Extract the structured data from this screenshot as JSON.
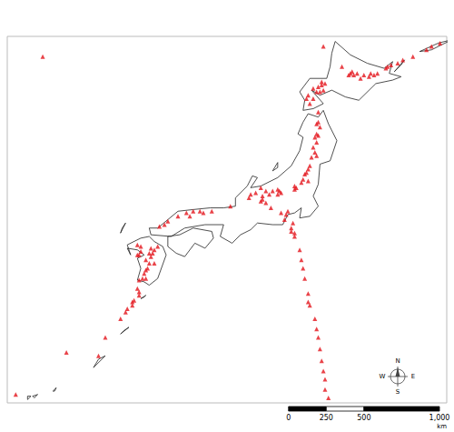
{
  "chart_data": {
    "type": "scatter",
    "marker": "triangle",
    "color": "#e3141b",
    "grid": false,
    "tick_labels": false,
    "xlim": [
      122.5,
      148.5
    ],
    "ylim": [
      24,
      45.8
    ],
    "x": [
      145.0,
      145.2,
      144.9,
      145.6,
      145.9,
      146.5,
      147.3,
      147.6,
      148.1,
      148.6,
      144.0,
      144.2,
      144.4,
      143.9,
      143.6,
      143.2,
      142.9,
      142.8,
      142.7,
      143.0,
      143.4,
      141.3,
      141.1,
      140.9,
      141.2,
      140.8,
      140.6,
      141.0,
      140.3,
      140.6,
      140.2,
      140.4,
      141.1,
      142.3,
      141.2,
      140.9,
      140.9,
      140.8,
      141.0,
      140.8,
      140.7,
      140.9,
      140.8,
      140.6,
      140.7,
      140.8,
      140.5,
      140.4,
      140.3,
      140.2,
      140.1,
      140.0,
      139.9,
      140.3,
      139.5,
      139.6,
      139.5,
      138.5,
      138.6,
      138.5,
      138.7,
      138.2,
      137.6,
      137.6,
      137.5,
      137.8,
      138.0,
      137.8,
      137.5,
      137.2,
      136.8,
      136.9,
      138.1,
      138.7,
      139.0,
      138.9,
      139.1,
      139.4,
      139.3,
      139.3,
      139.5,
      139.5,
      139.8,
      139.9,
      140.0,
      140.1,
      140.3,
      140.3,
      140.4,
      140.7,
      140.8,
      140.9,
      141.0,
      141.1,
      141.2,
      141.3,
      141.3,
      141.5,
      133.9,
      133.5,
      133.1,
      132.6,
      132.0,
      131.8,
      131.5,
      134.1,
      134.6,
      133.3,
      135.7,
      130.2,
      130.4,
      131.0,
      131.2,
      131.4,
      131.1,
      130.9,
      131.0,
      130.7,
      130.3,
      130.2,
      130.9,
      130.8,
      130.7,
      130.6,
      130.5,
      130.3,
      130.7,
      131.2,
      130.4,
      130.2,
      130.3,
      129.9,
      129.6,
      129.2,
      129.5,
      129.9,
      130.0,
      130.3,
      128.3,
      127.9,
      126.0,
      123.0,
      124.6
    ],
    "values": [
      44.0,
      44.1,
      43.9,
      44.2,
      44.4,
      44.6,
      45.0,
      45.2,
      45.4,
      45.6,
      43.6,
      43.5,
      43.6,
      43.4,
      43.5,
      43.6,
      43.7,
      43.6,
      43.5,
      43.5,
      43.3,
      43.0,
      42.9,
      42.8,
      42.6,
      42.5,
      42.7,
      42.5,
      42.3,
      42.1,
      42.1,
      41.8,
      43.1,
      44.0,
      45.2,
      41.3,
      40.7,
      40.6,
      40.4,
      40.0,
      39.8,
      39.9,
      39.5,
      39.2,
      38.9,
      38.7,
      38.6,
      38.1,
      37.9,
      37.7,
      37.6,
      37.3,
      37.1,
      37.2,
      36.9,
      36.8,
      36.7,
      36.7,
      36.6,
      36.4,
      36.5,
      36.6,
      36.3,
      36.1,
      36.0,
      35.9,
      36.4,
      36.6,
      36.8,
      36.5,
      36.2,
      36.4,
      35.6,
      35.3,
      35.2,
      34.9,
      35.4,
      34.7,
      34.4,
      34.2,
      34.1,
      33.9,
      33.1,
      32.5,
      32.0,
      31.4,
      30.5,
      30.0,
      29.8,
      29.0,
      28.4,
      27.9,
      27.2,
      26.5,
      25.9,
      25.4,
      24.8,
      24.3,
      35.4,
      35.4,
      35.3,
      35.1,
      34.8,
      34.6,
      34.5,
      35.3,
      35.4,
      35.1,
      35.7,
      33.4,
      33.3,
      33.2,
      33.1,
      33.3,
      32.9,
      32.9,
      32.7,
      32.5,
      32.8,
      32.8,
      32.3,
      32.0,
      31.9,
      31.7,
      31.4,
      31.3,
      31.4,
      32.3,
      33.0,
      30.8,
      30.4,
      30.0,
      29.6,
      29.0,
      29.4,
      29.8,
      30.1,
      30.6,
      27.9,
      26.8,
      27.0,
      24.5,
      44.6
    ],
    "coastlines": [
      [
        [
          141.9,
          45.5
        ],
        [
          142.8,
          44.7
        ],
        [
          143.8,
          44.2
        ],
        [
          144.8,
          43.9
        ],
        [
          145.3,
          44.3
        ],
        [
          145.1,
          43.6
        ],
        [
          145.8,
          43.4
        ],
        [
          145.3,
          43.2
        ],
        [
          144.3,
          42.99
        ],
        [
          143.3,
          42.0
        ],
        [
          142.5,
          42.2
        ],
        [
          141.7,
          42.6
        ],
        [
          141.0,
          42.3
        ],
        [
          140.5,
          42.6
        ],
        [
          141.2,
          41.8
        ],
        [
          140.6,
          41.5
        ],
        [
          140.0,
          41.4
        ],
        [
          140.1,
          42.0
        ],
        [
          139.8,
          42.5
        ],
        [
          140.4,
          43.3
        ],
        [
          141.4,
          43.3
        ],
        [
          141.6,
          44.0
        ],
        [
          141.7,
          44.8
        ],
        [
          141.9,
          45.5
        ]
      ],
      [
        [
          140.3,
          41.2
        ],
        [
          140.9,
          41.0
        ],
        [
          141.2,
          41.4
        ],
        [
          141.5,
          40.6
        ],
        [
          142.0,
          39.6
        ],
        [
          141.6,
          38.4
        ],
        [
          141.0,
          38.2
        ],
        [
          140.9,
          37.0
        ],
        [
          140.6,
          36.3
        ],
        [
          140.9,
          35.7
        ],
        [
          140.4,
          35.1
        ],
        [
          139.8,
          35.0
        ],
        [
          139.9,
          35.6
        ],
        [
          139.5,
          35.3
        ],
        [
          139.1,
          35.2
        ],
        [
          138.8,
          34.6
        ],
        [
          138.2,
          34.6
        ],
        [
          137.3,
          34.7
        ],
        [
          136.9,
          34.3
        ],
        [
          136.3,
          34.0
        ],
        [
          135.8,
          33.5
        ],
        [
          135.1,
          33.9
        ],
        [
          135.3,
          34.6
        ],
        [
          134.2,
          34.6
        ],
        [
          133.0,
          34.4
        ],
        [
          132.2,
          33.9
        ],
        [
          131.0,
          34.0
        ],
        [
          130.9,
          34.4
        ],
        [
          131.4,
          34.4
        ],
        [
          132.6,
          35.4
        ],
        [
          133.5,
          35.5
        ],
        [
          134.5,
          35.6
        ],
        [
          135.3,
          35.6
        ],
        [
          136.0,
          35.7
        ],
        [
          136.0,
          36.2
        ],
        [
          136.7,
          36.9
        ],
        [
          137.0,
          37.5
        ],
        [
          137.3,
          37.4
        ],
        [
          136.9,
          36.8
        ],
        [
          137.5,
          36.9
        ],
        [
          138.5,
          37.4
        ],
        [
          139.3,
          38.1
        ],
        [
          139.8,
          39.0
        ],
        [
          140.0,
          39.8
        ],
        [
          139.7,
          40.0
        ],
        [
          140.0,
          40.7
        ],
        [
          140.3,
          41.2
        ]
      ],
      [
        [
          132.0,
          33.9
        ],
        [
          132.7,
          34.0
        ],
        [
          133.5,
          34.4
        ],
        [
          134.6,
          34.2
        ],
        [
          134.7,
          33.8
        ],
        [
          134.2,
          33.2
        ],
        [
          133.6,
          33.5
        ],
        [
          133.0,
          32.7
        ],
        [
          132.5,
          32.9
        ],
        [
          132.0,
          33.3
        ],
        [
          132.0,
          33.9
        ]
      ],
      [
        [
          130.9,
          33.9
        ],
        [
          131.2,
          33.6
        ],
        [
          131.7,
          33.3
        ],
        [
          131.9,
          32.8
        ],
        [
          131.4,
          31.4
        ],
        [
          130.9,
          31.0
        ],
        [
          130.6,
          31.2
        ],
        [
          130.2,
          31.3
        ],
        [
          130.4,
          32.0
        ],
        [
          130.2,
          32.6
        ],
        [
          130.6,
          32.8
        ],
        [
          130.2,
          33.1
        ],
        [
          129.6,
          33.2
        ],
        [
          129.8,
          32.8
        ],
        [
          129.6,
          33.4
        ],
        [
          130.4,
          33.8
        ],
        [
          130.9,
          33.9
        ]
      ],
      [
        [
          138.2,
          37.8
        ],
        [
          138.5,
          38.3
        ],
        [
          138.5,
          38.0
        ],
        [
          138.2,
          37.8
        ]
      ],
      [
        [
          129.2,
          34.1
        ],
        [
          129.5,
          34.7
        ],
        [
          129.3,
          34.4
        ],
        [
          129.2,
          34.1
        ]
      ],
      [
        [
          130.4,
          30.2
        ],
        [
          130.7,
          30.4
        ],
        [
          130.6,
          30.3
        ],
        [
          130.4,
          30.2
        ]
      ],
      [
        [
          129.2,
          28.1
        ],
        [
          129.7,
          28.5
        ],
        [
          129.4,
          28.3
        ],
        [
          129.2,
          28.1
        ]
      ],
      [
        [
          127.6,
          26.1
        ],
        [
          128.3,
          26.8
        ],
        [
          127.9,
          26.6
        ],
        [
          127.6,
          26.1
        ]
      ],
      [
        [
          125.2,
          24.7
        ],
        [
          125.4,
          24.9
        ],
        [
          125.3,
          24.7
        ],
        [
          125.2,
          24.7
        ]
      ],
      [
        [
          124.1,
          24.3
        ],
        [
          124.3,
          24.5
        ],
        [
          124.0,
          24.4
        ],
        [
          124.1,
          24.3
        ]
      ],
      [
        [
          123.7,
          24.2
        ],
        [
          123.9,
          24.4
        ],
        [
          123.7,
          24.4
        ],
        [
          123.7,
          24.2
        ]
      ],
      [
        [
          145.4,
          43.7
        ],
        [
          146.0,
          44.4
        ],
        [
          145.8,
          44.1
        ],
        [
          145.4,
          43.7
        ]
      ],
      [
        [
          146.9,
          44.9
        ],
        [
          148.0,
          45.4
        ],
        [
          148.8,
          45.6
        ],
        [
          147.6,
          45.0
        ],
        [
          146.9,
          44.9
        ]
      ],
      [
        [
          149.0,
          45.8
        ],
        [
          149.5,
          46.2
        ],
        [
          149.3,
          46.0
        ],
        [
          149.0,
          45.8
        ]
      ]
    ],
    "scale_bar": {
      "ticks": [
        0,
        250,
        500,
        {
          "value": 1000,
          "label": "1,000"
        }
      ],
      "unit": "km"
    },
    "compass": [
      "N",
      "E",
      "S",
      "W"
    ]
  }
}
